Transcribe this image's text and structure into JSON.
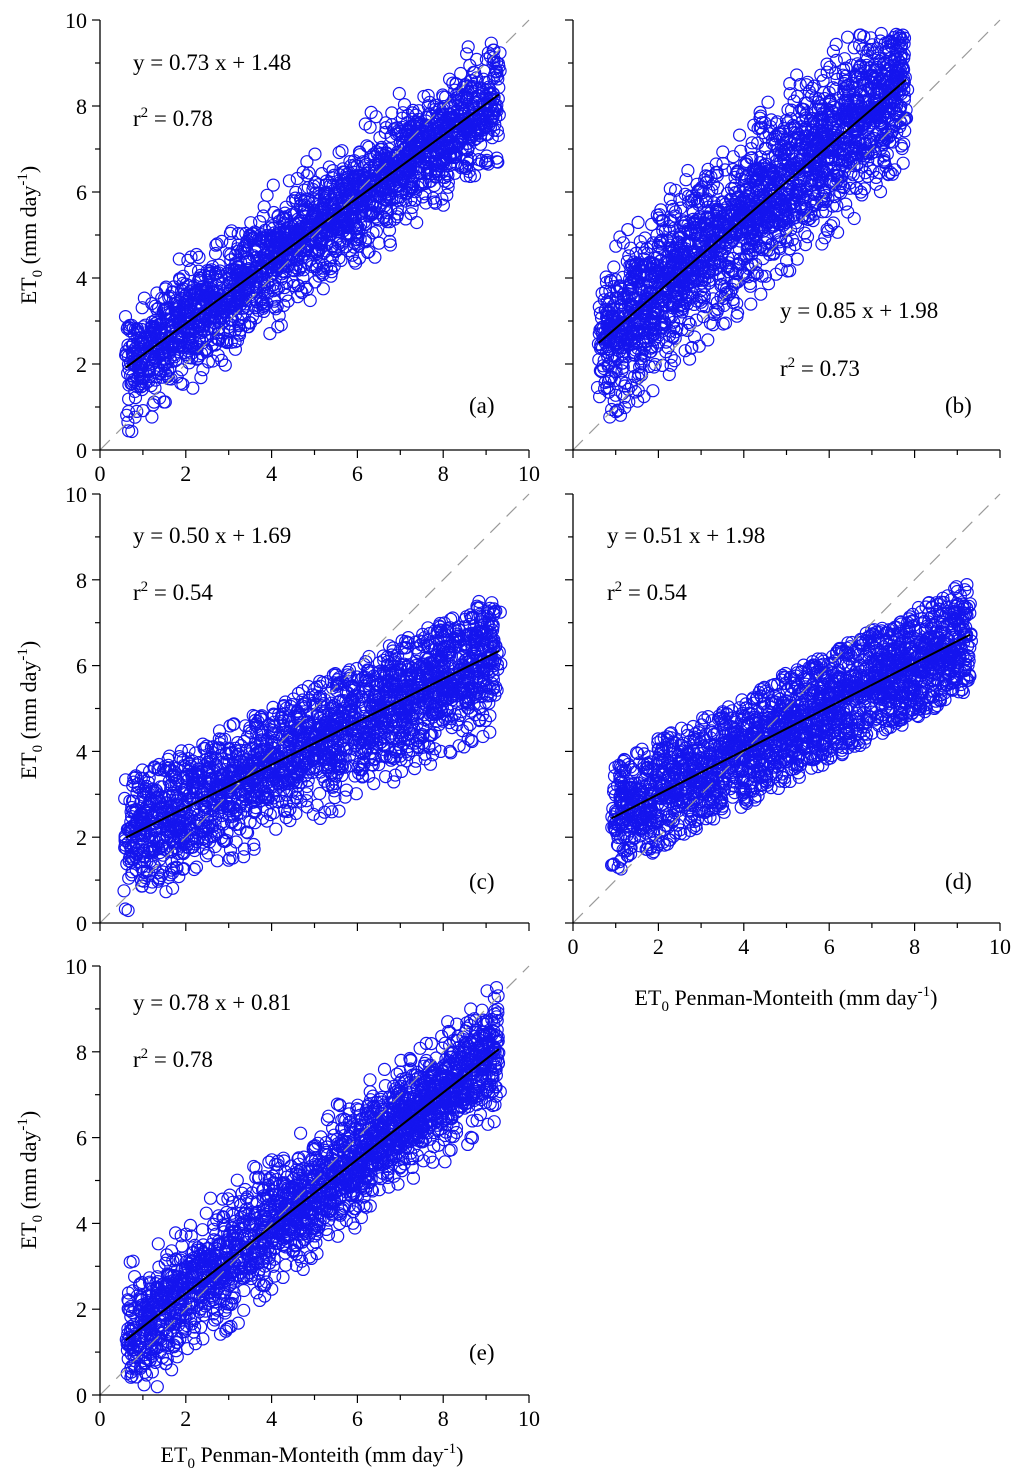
{
  "chart_data": [
    {
      "type": "scatter",
      "panel_label": "(a)",
      "equation": "y = 0.73 x + 1.48",
      "r2": "0.78",
      "regression": {
        "slope": 0.73,
        "intercept": 1.48
      },
      "x_range": [
        0,
        10
      ],
      "y_range": [
        0,
        10
      ],
      "x_ticks": [
        "0",
        "2",
        "4",
        "6",
        "8",
        "10"
      ],
      "y_ticks": [
        "0",
        "2",
        "4",
        "6",
        "8",
        "10"
      ],
      "ylabel": "ET0 (mm day-1)",
      "xlabel": "",
      "reference_line": "1:1",
      "cloud": {
        "x_min": 0.6,
        "x_max": 9.3,
        "spread": 0.62,
        "band_lo": -1.7,
        "band_hi": 1.8,
        "n": 2300
      }
    },
    {
      "type": "scatter",
      "panel_label": "(b)",
      "equation": "y = 0.85 x + 1.98",
      "r2": "0.73",
      "regression": {
        "slope": 0.85,
        "intercept": 1.98
      },
      "x_range": [
        0,
        10
      ],
      "y_range": [
        0,
        10
      ],
      "x_ticks": [],
      "y_ticks": [],
      "ylabel": "",
      "xlabel": "",
      "reference_line": "1:1",
      "cloud": {
        "x_min": 0.6,
        "x_max": 7.8,
        "spread": 0.85,
        "band_lo": -2.2,
        "band_hi": 2.3,
        "n": 2300
      }
    },
    {
      "type": "scatter",
      "panel_label": "(c)",
      "equation": "y = 0.50 x + 1.69",
      "r2": "0.54",
      "regression": {
        "slope": 0.5,
        "intercept": 1.69
      },
      "x_range": [
        0,
        10
      ],
      "y_range": [
        0,
        10
      ],
      "x_ticks": [],
      "y_ticks": [
        "0",
        "2",
        "4",
        "6",
        "8",
        "10"
      ],
      "ylabel": "ET0 (mm day-1)",
      "xlabel": "",
      "reference_line": "1:1",
      "cloud": {
        "x_min": 0.6,
        "x_max": 9.3,
        "spread": 0.75,
        "band_lo": -1.9,
        "band_hi": 1.4,
        "n": 2300
      }
    },
    {
      "type": "scatter",
      "panel_label": "(d)",
      "equation": "y = 0.51 x + 1.98",
      "r2": "0.54",
      "regression": {
        "slope": 0.51,
        "intercept": 1.98
      },
      "x_range": [
        0,
        10
      ],
      "y_range": [
        0,
        10
      ],
      "x_ticks": [
        "0",
        "2",
        "4",
        "6",
        "8",
        "10"
      ],
      "y_ticks": [],
      "ylabel": "",
      "xlabel": "ET0 Penman-Monteith (mm day-1)",
      "reference_line": "1:1",
      "cloud": {
        "x_min": 0.9,
        "x_max": 9.3,
        "spread": 0.7,
        "band_lo": -1.3,
        "band_hi": 1.3,
        "n": 2300
      }
    },
    {
      "type": "scatter",
      "panel_label": "(e)",
      "equation": "y = 0.78 x + 0.81",
      "r2": "0.78",
      "regression": {
        "slope": 0.78,
        "intercept": 0.81
      },
      "x_range": [
        0,
        10
      ],
      "y_range": [
        0,
        10
      ],
      "x_ticks": [
        "0",
        "2",
        "4",
        "6",
        "8",
        "10"
      ],
      "y_ticks": [
        "0",
        "2",
        "4",
        "6",
        "8",
        "10"
      ],
      "ylabel": "ET0 (mm day-1)",
      "xlabel": "ET0 Penman-Monteith (mm day-1)",
      "reference_line": "1:1",
      "cloud": {
        "x_min": 0.6,
        "x_max": 9.3,
        "spread": 0.62,
        "band_lo": -1.7,
        "band_hi": 1.8,
        "n": 2300
      }
    }
  ],
  "colors": {
    "points": "#1515ee",
    "regression_line": "#000000",
    "reference_line": "#9a9a9a",
    "axes": "#000000"
  }
}
